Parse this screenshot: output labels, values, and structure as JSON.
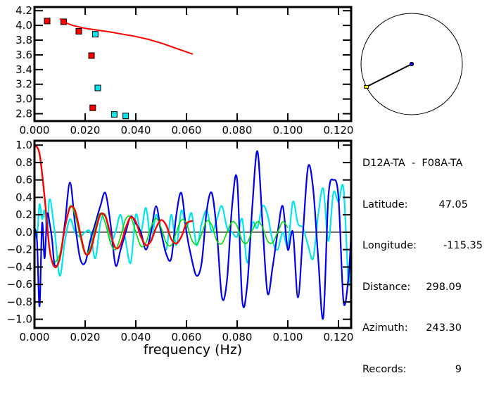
{
  "info_panel": {
    "station_pair": "D12A-TA  -  F08A-TA",
    "rows": [
      {
        "label": "Latitude:",
        "value": "47.05"
      },
      {
        "label": "Longitude:",
        "value": "-115.35"
      },
      {
        "label": "Distance:",
        "value": "298.09"
      },
      {
        "label": "Azimuth:",
        "value": "243.30"
      },
      {
        "label": "Records:",
        "value": "9"
      }
    ]
  },
  "colors": {
    "red": "#ff0000",
    "cyan": "#00e5ee",
    "blue": "#0000ee",
    "green": "#00dd00",
    "yellow": "#ffee00",
    "axis": "#000000"
  },
  "chart_data": [
    {
      "type": "scatter",
      "name": "dispersion",
      "title": "",
      "xlabel": "",
      "ylabel": "",
      "xlim": [
        0.0,
        0.125
      ],
      "ylim": [
        2.7,
        4.25
      ],
      "xticks": [
        0.0,
        0.02,
        0.04,
        0.06,
        0.08,
        0.1,
        0.12
      ],
      "xtick_labels": [
        "0.000",
        "0.020",
        "0.040",
        "0.060",
        "0.080",
        "0.100",
        "0.120"
      ],
      "yticks": [
        2.8,
        3.0,
        3.2,
        3.4,
        3.6,
        3.8,
        4.0,
        4.2
      ],
      "ytick_labels": [
        "2.8",
        "3.0",
        "3.2",
        "3.4",
        "3.6",
        "3.8",
        "4.0",
        "4.2"
      ],
      "series": [
        {
          "name": "red-points",
          "color": "red",
          "marker": "square",
          "points": [
            [
              0.005,
              4.06
            ],
            [
              0.0115,
              4.05
            ],
            [
              0.0175,
              3.92
            ],
            [
              0.0225,
              3.59
            ],
            [
              0.023,
              2.88
            ]
          ]
        },
        {
          "name": "cyan-points",
          "color": "cyan",
          "marker": "square",
          "points": [
            [
              0.024,
              3.88
            ],
            [
              0.025,
              3.15
            ],
            [
              0.0315,
              2.79
            ],
            [
              0.036,
              2.77
            ]
          ]
        },
        {
          "name": "red-curve",
          "color": "red",
          "type": "line",
          "x": [
            0.01,
            0.012,
            0.015,
            0.02,
            0.025,
            0.03,
            0.035,
            0.04,
            0.045,
            0.05,
            0.055,
            0.06,
            0.0625
          ],
          "y": [
            4.09,
            4.04,
            4.0,
            3.96,
            3.935,
            3.91,
            3.88,
            3.85,
            3.81,
            3.76,
            3.7,
            3.64,
            3.61
          ]
        }
      ]
    },
    {
      "type": "line",
      "name": "coherency",
      "title": "",
      "xlabel": "frequency (Hz)",
      "ylabel": "",
      "xlim": [
        0.0,
        0.125
      ],
      "ylim": [
        -1.1,
        1.05
      ],
      "xticks": [
        0.0,
        0.02,
        0.04,
        0.06,
        0.08,
        0.1,
        0.12
      ],
      "xtick_labels": [
        "0.000",
        "0.020",
        "0.040",
        "0.060",
        "0.080",
        "0.100",
        "0.120"
      ],
      "yticks": [
        -1.0,
        -0.8,
        -0.6,
        -0.4,
        -0.2,
        0.0,
        0.2,
        0.4,
        0.6,
        0.8,
        1.0
      ],
      "ytick_labels": [
        "-1.0",
        "-0.8",
        "-0.6",
        "-0.4",
        "-0.2",
        "0.0",
        "0.2",
        "0.4",
        "0.6",
        "0.8",
        "1.0"
      ],
      "zero_line": true,
      "series": [
        {
          "name": "blue-observed",
          "color": "blue",
          "x": [
            0.0,
            0.001,
            0.002,
            0.003,
            0.004,
            0.005,
            0.006,
            0.007,
            0.008,
            0.01,
            0.012,
            0.014,
            0.016,
            0.018,
            0.02,
            0.022,
            0.024,
            0.026,
            0.028,
            0.03,
            0.032,
            0.034,
            0.036,
            0.038,
            0.04,
            0.042,
            0.044,
            0.046,
            0.048,
            0.05,
            0.052,
            0.054,
            0.056,
            0.058,
            0.06,
            0.062,
            0.064,
            0.066,
            0.068,
            0.07,
            0.072,
            0.074,
            0.076,
            0.078,
            0.08,
            0.082,
            0.084,
            0.086,
            0.088,
            0.09,
            0.092,
            0.094,
            0.096,
            0.098,
            0.1,
            0.102,
            0.104,
            0.106,
            0.108,
            0.11,
            0.112,
            0.114,
            0.116,
            0.118,
            0.12,
            0.122,
            0.124,
            0.125
          ],
          "y": [
            0.05,
            -0.1,
            -0.85,
            0.1,
            -0.3,
            0.2,
            0.1,
            -0.1,
            -0.38,
            -0.3,
            0.1,
            0.57,
            0.1,
            -0.3,
            -0.35,
            -0.1,
            0.1,
            0.3,
            0.45,
            0.1,
            -0.38,
            -0.2,
            0.0,
            0.18,
            0.1,
            0.0,
            -0.2,
            0.0,
            0.3,
            0.0,
            -0.25,
            -0.3,
            0.2,
            0.45,
            0.0,
            -0.3,
            -0.5,
            -0.35,
            0.25,
            0.45,
            0.0,
            -0.75,
            -0.55,
            0.3,
            0.6,
            -0.78,
            -0.6,
            0.3,
            0.93,
            0.1,
            -0.7,
            -0.4,
            0.0,
            0.3,
            -0.2,
            0.0,
            -0.75,
            0.0,
            0.75,
            0.5,
            -0.3,
            -0.98,
            0.4,
            0.6,
            0.4,
            -0.8,
            -0.5,
            0.0
          ]
        },
        {
          "name": "cyan-observed",
          "color": "cyan",
          "x": [
            0.0,
            0.001,
            0.002,
            0.003,
            0.004,
            0.005,
            0.006,
            0.008,
            0.01,
            0.012,
            0.014,
            0.016,
            0.018,
            0.02,
            0.022,
            0.024,
            0.026,
            0.028,
            0.03,
            0.032,
            0.034,
            0.036,
            0.038,
            0.04,
            0.042,
            0.044,
            0.046,
            0.048,
            0.05,
            0.052,
            0.054,
            0.056,
            0.058,
            0.06,
            0.062,
            0.064,
            0.066,
            0.068,
            0.07,
            0.072,
            0.074,
            0.076,
            0.078,
            0.08,
            0.082,
            0.084,
            0.086,
            0.088,
            0.09,
            0.092,
            0.094,
            0.096,
            0.098,
            0.1,
            0.102,
            0.104,
            0.106,
            0.108,
            0.11,
            0.112,
            0.114,
            0.116,
            0.118,
            0.12,
            0.122,
            0.124,
            0.125
          ],
          "y": [
            0.0,
            -0.05,
            0.32,
            0.15,
            0.25,
            0.0,
            0.38,
            0.0,
            -0.5,
            -0.1,
            0.15,
            0.0,
            -0.05,
            0.0,
            0.0,
            -0.3,
            0.1,
            0.2,
            -0.1,
            0.0,
            0.2,
            -0.1,
            -0.35,
            0.2,
            0.0,
            0.28,
            -0.1,
            0.2,
            0.0,
            -0.2,
            0.2,
            -0.15,
            0.25,
            0.05,
            0.22,
            -0.15,
            0.1,
            0.25,
            0.0,
            0.15,
            0.3,
            0.05,
            0.0,
            -0.05,
            0.15,
            -0.35,
            0.1,
            0.05,
            0.3,
            0.2,
            -0.1,
            -0.2,
            0.0,
            -0.15,
            0.35,
            0.1,
            0.05,
            -0.15,
            -0.3,
            0.2,
            0.5,
            -0.1,
            0.45,
            0.35,
            0.5,
            -0.6,
            -0.1
          ]
        },
        {
          "name": "red-model",
          "color": "red",
          "x_start": 0.0,
          "x_end": 0.0625,
          "decay": "bessel-like",
          "x": [
            0.0,
            0.002,
            0.004,
            0.006,
            0.008,
            0.01,
            0.012,
            0.014,
            0.016,
            0.018,
            0.02,
            0.022,
            0.024,
            0.026,
            0.028,
            0.03,
            0.032,
            0.034,
            0.036,
            0.038,
            0.04,
            0.042,
            0.044,
            0.046,
            0.048,
            0.05,
            0.052,
            0.054,
            0.056,
            0.058,
            0.06,
            0.0625
          ],
          "y": [
            1.0,
            0.9,
            0.4,
            -0.2,
            -0.4,
            -0.3,
            0.05,
            0.28,
            0.25,
            0.0,
            -0.24,
            -0.22,
            0.0,
            0.2,
            0.18,
            -0.02,
            -0.18,
            -0.14,
            0.05,
            0.17,
            0.12,
            -0.05,
            -0.15,
            -0.1,
            0.05,
            0.14,
            0.08,
            -0.08,
            -0.13,
            -0.05,
            0.1,
            0.13
          ]
        },
        {
          "name": "green-model",
          "color": "green",
          "x_start": 0.008,
          "x_end": 0.1,
          "decay": "bessel-like",
          "x": [
            0.008,
            0.01,
            0.012,
            0.014,
            0.016,
            0.018,
            0.02,
            0.022,
            0.024,
            0.026,
            0.028,
            0.03,
            0.032,
            0.034,
            0.036,
            0.038,
            0.04,
            0.042,
            0.044,
            0.046,
            0.048,
            0.05,
            0.052,
            0.054,
            0.056,
            0.058,
            0.06,
            0.062,
            0.064,
            0.066,
            0.068,
            0.07,
            0.072,
            0.074,
            0.076,
            0.078,
            0.08,
            0.082,
            0.084,
            0.086,
            0.088,
            0.09,
            0.092,
            0.094,
            0.096,
            0.098,
            0.1
          ],
          "y": [
            -0.35,
            -0.25,
            0.05,
            0.3,
            0.2,
            -0.05,
            -0.25,
            -0.18,
            0.05,
            0.22,
            0.1,
            -0.12,
            -0.2,
            -0.05,
            0.15,
            0.17,
            0.0,
            -0.16,
            -0.12,
            0.06,
            0.16,
            0.05,
            -0.12,
            -0.15,
            0.0,
            0.14,
            0.1,
            -0.08,
            -0.14,
            -0.02,
            0.13,
            0.08,
            -0.1,
            -0.13,
            0.0,
            0.12,
            0.07,
            -0.1,
            -0.12,
            0.02,
            0.12,
            0.06,
            -0.1,
            -0.12,
            0.0,
            0.12,
            0.05
          ]
        }
      ]
    },
    {
      "type": "diagram",
      "name": "azimuth-map",
      "azimuth_deg": 243.3,
      "center_marker_color": "blue",
      "edge_marker_color": "yellow"
    }
  ]
}
